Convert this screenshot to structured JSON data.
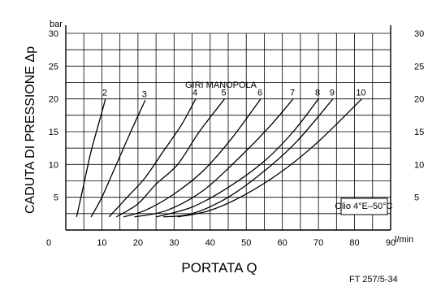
{
  "chart_data": {
    "type": "line",
    "ylabel": "CADUTA DI PRESSIONE Δp",
    "yunit": "bar",
    "xlabel": "PORTATA Q",
    "xunit": "l/min",
    "xlim": [
      0,
      90
    ],
    "ylim": [
      0,
      30
    ],
    "x_ticks": [
      "0",
      "10",
      "20",
      "30",
      "40",
      "50",
      "60",
      "70",
      "80",
      "90"
    ],
    "y_ticks": [
      "5",
      "10",
      "15",
      "20",
      "25",
      "30"
    ],
    "legend_title": "GIRI MANOPOLA",
    "annotation": "Olio 4°E–50°C",
    "footer": "FT 257/5-34",
    "grid": true,
    "series": [
      {
        "name": "2",
        "points": [
          [
            3,
            2
          ],
          [
            5,
            7
          ],
          [
            7,
            12
          ],
          [
            9,
            16
          ],
          [
            11,
            20
          ]
        ]
      },
      {
        "name": "3",
        "points": [
          [
            7,
            2
          ],
          [
            10,
            5
          ],
          [
            14,
            10
          ],
          [
            18,
            15
          ],
          [
            22,
            19.8
          ]
        ]
      },
      {
        "name": "4",
        "points": [
          [
            12,
            2
          ],
          [
            17,
            5
          ],
          [
            22,
            8
          ],
          [
            27,
            12
          ],
          [
            32,
            16
          ],
          [
            36,
            20
          ]
        ]
      },
      {
        "name": "5",
        "points": [
          [
            14,
            2
          ],
          [
            20,
            4
          ],
          [
            25,
            7
          ],
          [
            31,
            10
          ],
          [
            37,
            15
          ],
          [
            44,
            20
          ]
        ]
      },
      {
        "name": "6",
        "points": [
          [
            16,
            2
          ],
          [
            22,
            3
          ],
          [
            30,
            5.5
          ],
          [
            38,
            9
          ],
          [
            46,
            14
          ],
          [
            54,
            20
          ]
        ]
      },
      {
        "name": "7",
        "points": [
          [
            19,
            2
          ],
          [
            28,
            3
          ],
          [
            38,
            6
          ],
          [
            48,
            11
          ],
          [
            56,
            15.5
          ],
          [
            63,
            20
          ]
        ]
      },
      {
        "name": "8",
        "points": [
          [
            25,
            2
          ],
          [
            35,
            3.5
          ],
          [
            45,
            6.5
          ],
          [
            55,
            10.5
          ],
          [
            63,
            15
          ],
          [
            70,
            20
          ]
        ]
      },
      {
        "name": "9",
        "points": [
          [
            27,
            2
          ],
          [
            35,
            2.5
          ],
          [
            45,
            5
          ],
          [
            55,
            9
          ],
          [
            64,
            13.5
          ],
          [
            74,
            20
          ]
        ]
      },
      {
        "name": "10",
        "points": [
          [
            31,
            2
          ],
          [
            40,
            3
          ],
          [
            50,
            5.5
          ],
          [
            60,
            9
          ],
          [
            70,
            13.5
          ],
          [
            82,
            20
          ]
        ]
      }
    ]
  }
}
